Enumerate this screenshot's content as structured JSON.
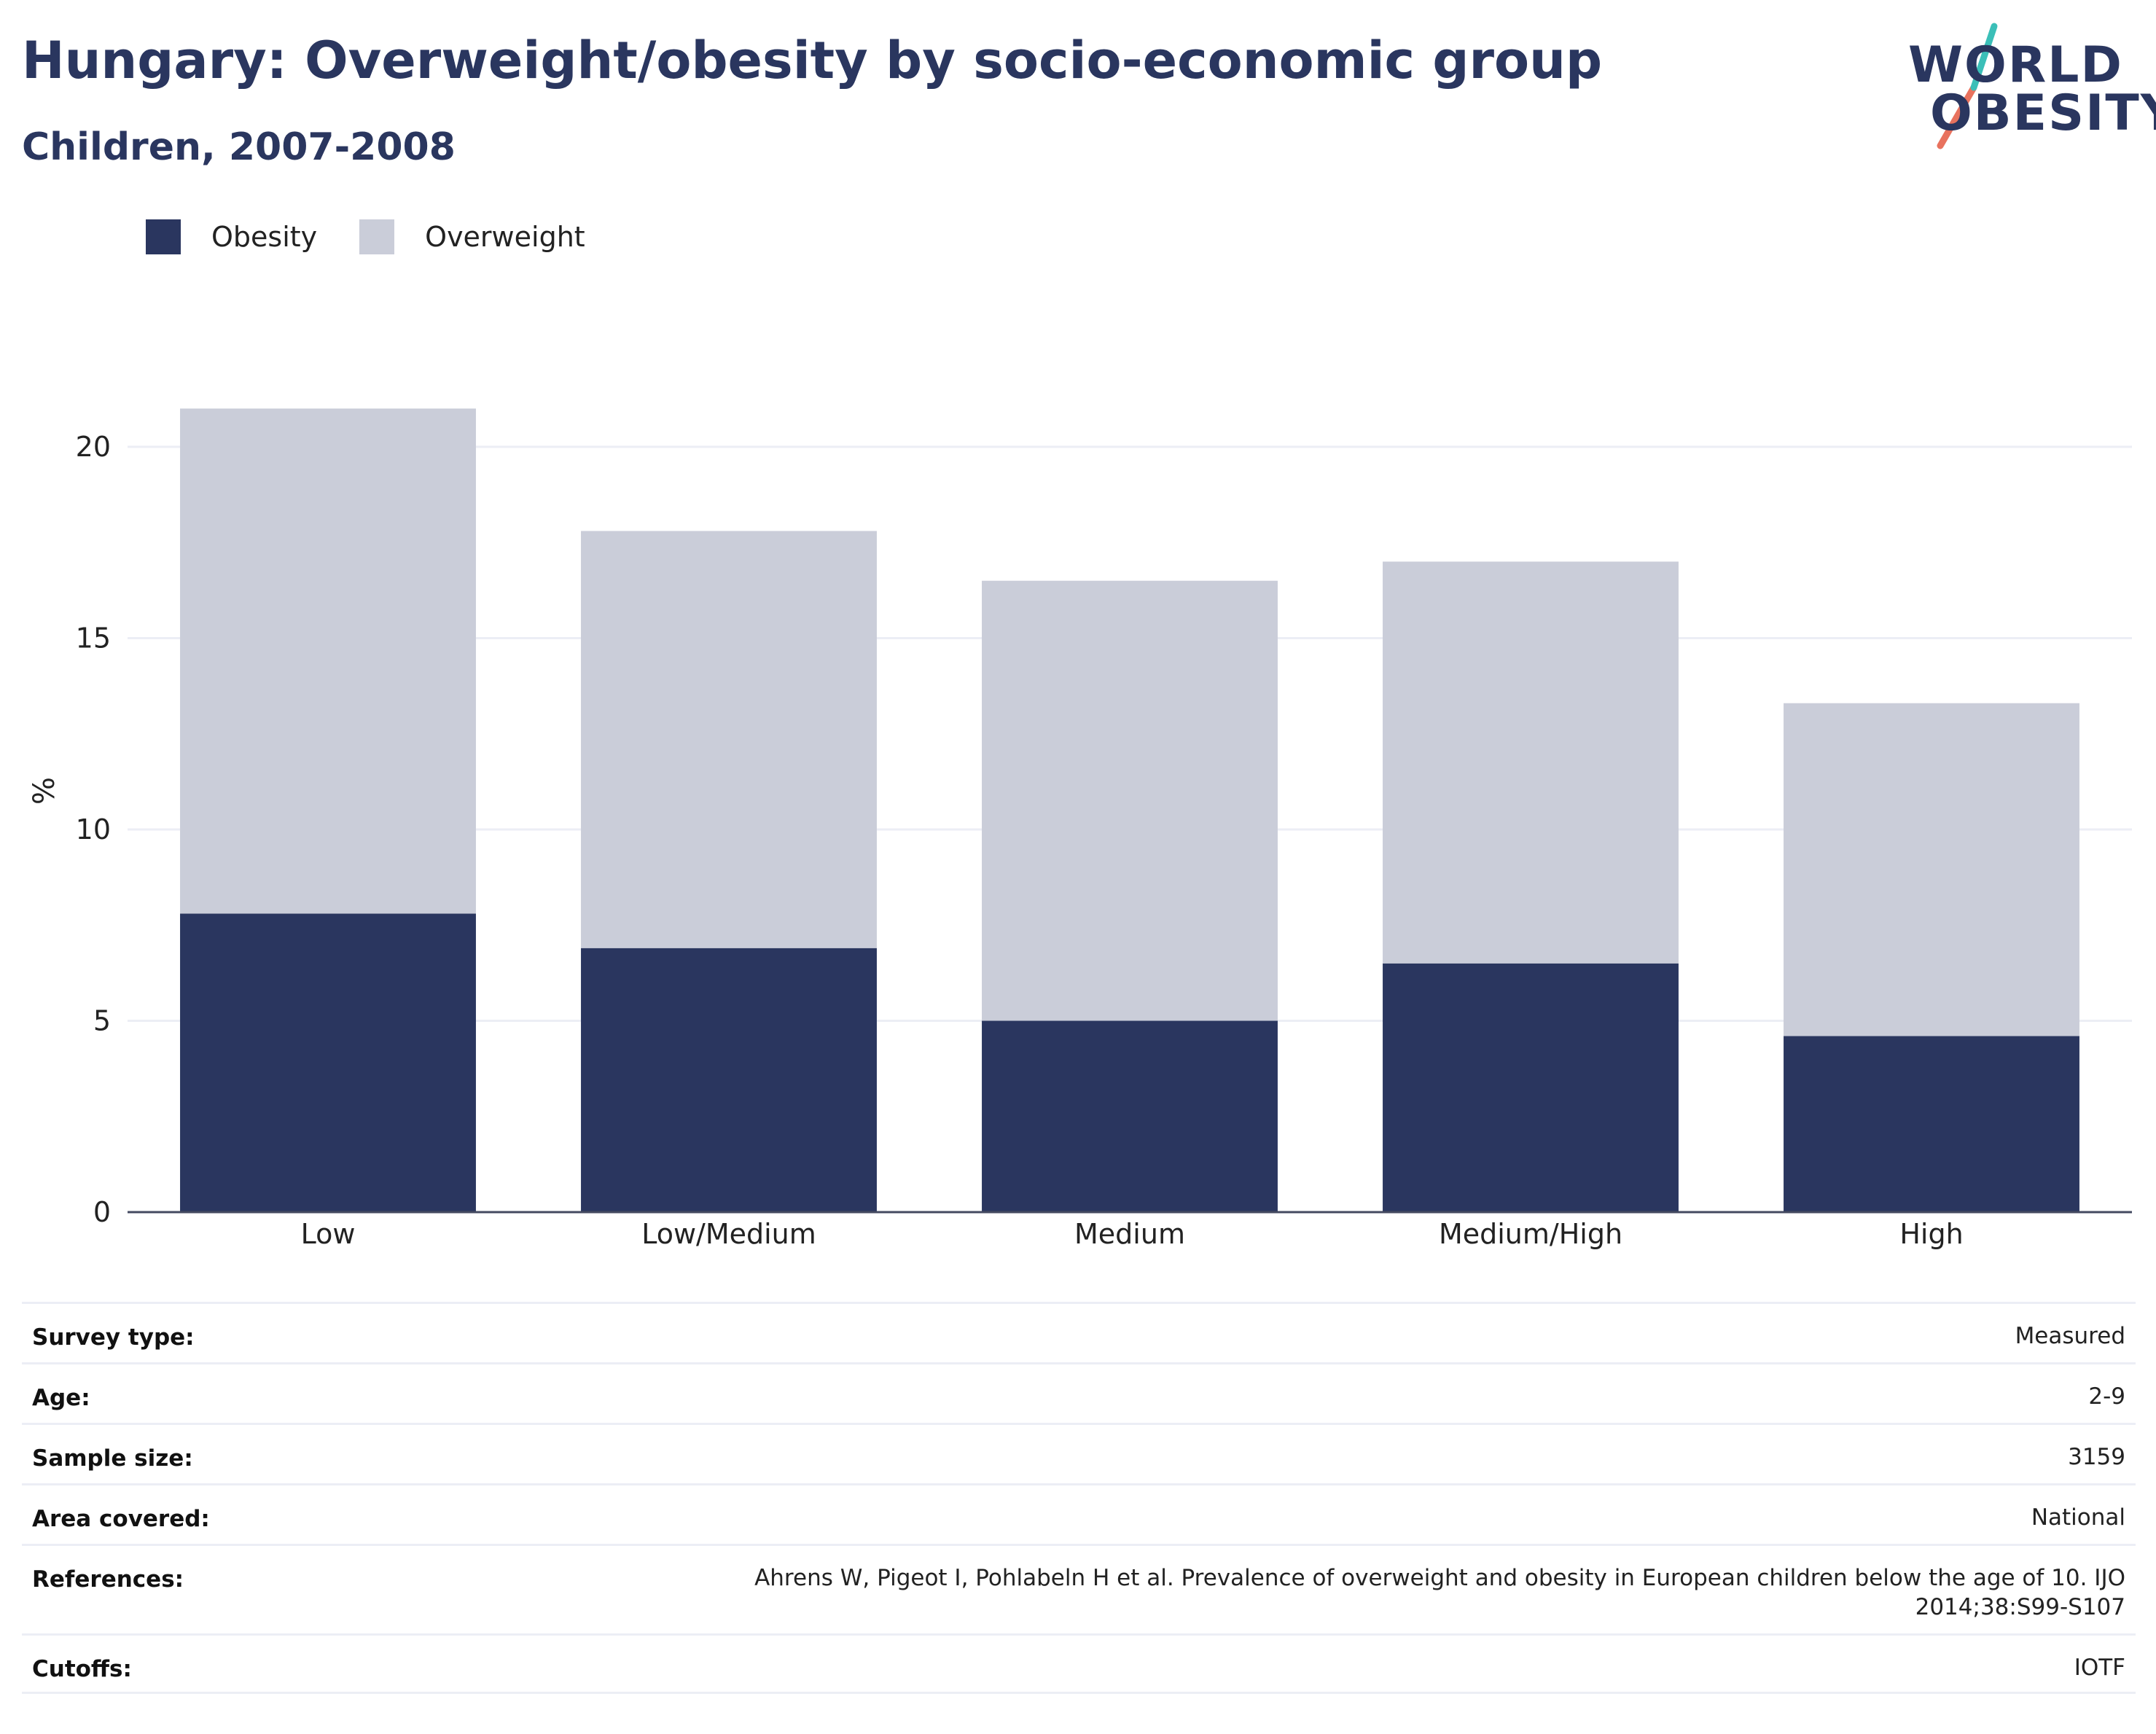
{
  "header": {
    "title": "Hungary: Overweight/obesity by socio-economic group",
    "subtitle": "Children, 2007-2008"
  },
  "logo": {
    "line1": "WORLD",
    "line2": "OBESITY",
    "accent_teal": "#3bbfb8",
    "accent_coral": "#e8725e"
  },
  "colors": {
    "obesity": "#2a365f",
    "overweight": "#cacdd9",
    "text": "#2a365f",
    "grid": "#eceef5"
  },
  "legend": {
    "position": "top-left",
    "items": [
      {
        "label": "Obesity",
        "color": "#2a365f"
      },
      {
        "label": "Overweight",
        "color": "#cacdd9"
      }
    ]
  },
  "chart_data": {
    "type": "bar",
    "stacked": true,
    "categories": [
      "Low",
      "Low/Medium",
      "Medium",
      "Medium/High",
      "High"
    ],
    "series": [
      {
        "name": "Obesity",
        "values": [
          7.8,
          6.9,
          5.0,
          6.5,
          4.6
        ]
      },
      {
        "name": "Overweight",
        "values": [
          13.2,
          10.9,
          11.5,
          10.5,
          8.7
        ]
      }
    ],
    "ylabel": "%",
    "xlabel": "",
    "ylim": [
      0,
      21
    ],
    "yticks": [
      0,
      5,
      10,
      15,
      20
    ],
    "grid": true
  },
  "meta": [
    {
      "key": "Survey type:",
      "value": "Measured"
    },
    {
      "key": "Age:",
      "value": "2-9"
    },
    {
      "key": "Sample size:",
      "value": "3159"
    },
    {
      "key": "Area covered:",
      "value": "National"
    },
    {
      "key": "References:",
      "value": "Ahrens W, Pigeot I, Pohlabeln H et al. Prevalence of overweight and obesity in European children below the age of 10. IJO 2014;38:S99-S107"
    },
    {
      "key": "Cutoffs:",
      "value": "IOTF"
    }
  ]
}
